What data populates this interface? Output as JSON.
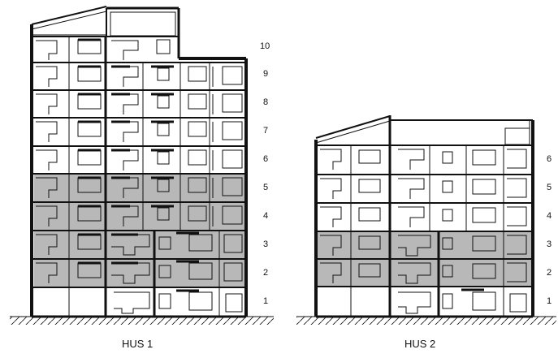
{
  "buildings": [
    {
      "id": "hus1",
      "label": "HUS 1",
      "floors": [
        "1",
        "2",
        "3",
        "4",
        "5",
        "6",
        "7",
        "8",
        "9",
        "10"
      ],
      "highlighted_floors": [
        "2",
        "3",
        "4",
        "5"
      ]
    },
    {
      "id": "hus2",
      "label": "HUS 2",
      "floors": [
        "1",
        "2",
        "3",
        "4",
        "5",
        "6"
      ],
      "highlighted_floors": [
        "2",
        "3"
      ]
    }
  ],
  "colors": {
    "highlight": "#b8b8b8",
    "line": "#111111",
    "background": "#ffffff"
  }
}
